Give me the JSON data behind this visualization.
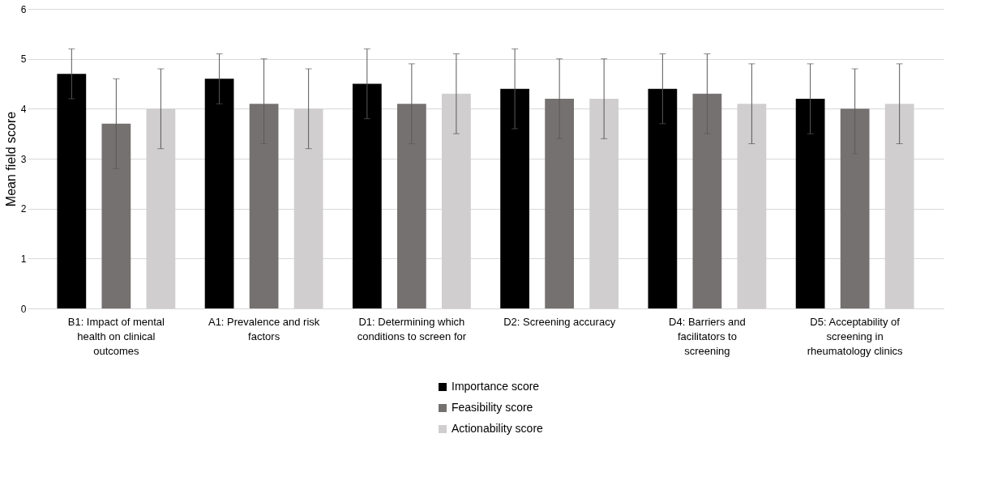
{
  "chart_data": {
    "type": "bar",
    "ylabel": "Mean field score",
    "categories": [
      "B1: Impact of mental health on clinical outcomes",
      "A1: Prevalence and risk factors",
      "D1: Determining which conditions to screen for",
      "D2: Screening accuracy",
      "D4: Barriers and facilitators to screening",
      "D5: Acceptability of screening in rheumatology clinics"
    ],
    "series": [
      {
        "name": "Importance score",
        "color": "#000000",
        "values": [
          4.7,
          4.6,
          4.5,
          4.4,
          4.4,
          4.2
        ],
        "errors": [
          [
            4.2,
            5.2
          ],
          [
            4.1,
            5.1
          ],
          [
            3.8,
            5.2
          ],
          [
            3.6,
            5.2
          ],
          [
            3.7,
            5.1
          ],
          [
            3.5,
            4.9
          ]
        ]
      },
      {
        "name": "Feasibility score",
        "color": "#767171",
        "values": [
          3.7,
          4.1,
          4.1,
          4.2,
          4.3,
          4.0
        ],
        "errors": [
          [
            2.8,
            4.6
          ],
          [
            3.3,
            5.0
          ],
          [
            3.3,
            4.9
          ],
          [
            3.4,
            5.0
          ],
          [
            3.5,
            5.1
          ],
          [
            3.1,
            4.8
          ]
        ]
      },
      {
        "name": "Actionability score",
        "color": "#d0cece",
        "values": [
          4.0,
          4.0,
          4.3,
          4.2,
          4.1,
          4.1
        ],
        "errors": [
          [
            3.2,
            4.8
          ],
          [
            3.2,
            4.8
          ],
          [
            3.5,
            5.1
          ],
          [
            3.4,
            5.0
          ],
          [
            3.3,
            4.9
          ],
          [
            3.3,
            4.9
          ]
        ]
      }
    ],
    "ylim": [
      0,
      6
    ],
    "yticks": [
      0,
      1,
      2,
      3,
      4,
      5,
      6
    ],
    "grid": "y",
    "legend": "bottom"
  }
}
